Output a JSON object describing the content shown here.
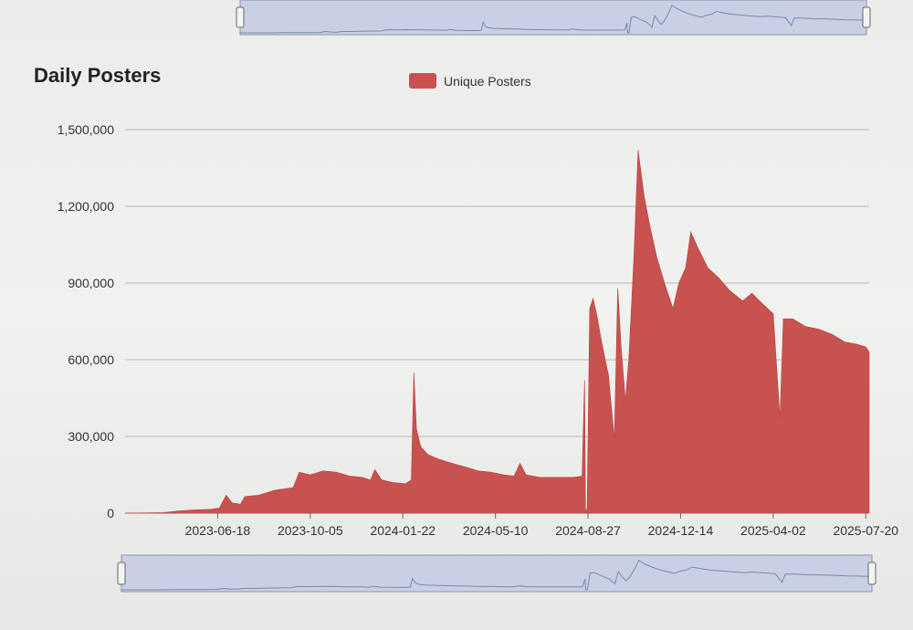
{
  "chart_data": {
    "type": "area",
    "title": "Daily Posters",
    "series": [
      {
        "name": "Unique Posters",
        "color": "#c85250",
        "points": [
          [
            "2023-03-01",
            0
          ],
          [
            "2023-04-15",
            2000
          ],
          [
            "2023-05-01",
            8000
          ],
          [
            "2023-05-20",
            12000
          ],
          [
            "2023-06-10",
            15000
          ],
          [
            "2023-06-20",
            20000
          ],
          [
            "2023-06-28",
            70000
          ],
          [
            "2023-07-05",
            40000
          ],
          [
            "2023-07-15",
            35000
          ],
          [
            "2023-07-20",
            65000
          ],
          [
            "2023-08-05",
            70000
          ],
          [
            "2023-08-25",
            90000
          ],
          [
            "2023-09-15",
            100000
          ],
          [
            "2023-09-22",
            160000
          ],
          [
            "2023-10-05",
            150000
          ],
          [
            "2023-10-20",
            165000
          ],
          [
            "2023-11-05",
            160000
          ],
          [
            "2023-11-20",
            145000
          ],
          [
            "2023-12-05",
            140000
          ],
          [
            "2023-12-15",
            130000
          ],
          [
            "2023-12-20",
            170000
          ],
          [
            "2023-12-28",
            130000
          ],
          [
            "2024-01-10",
            120000
          ],
          [
            "2024-01-25",
            115000
          ],
          [
            "2024-02-01",
            130000
          ],
          [
            "2024-02-04",
            550000
          ],
          [
            "2024-02-07",
            330000
          ],
          [
            "2024-02-12",
            260000
          ],
          [
            "2024-02-20",
            230000
          ],
          [
            "2024-03-05",
            210000
          ],
          [
            "2024-03-25",
            190000
          ],
          [
            "2024-04-05",
            180000
          ],
          [
            "2024-04-20",
            165000
          ],
          [
            "2024-05-05",
            160000
          ],
          [
            "2024-05-20",
            150000
          ],
          [
            "2024-06-01",
            145000
          ],
          [
            "2024-06-08",
            195000
          ],
          [
            "2024-06-15",
            150000
          ],
          [
            "2024-07-01",
            140000
          ],
          [
            "2024-07-20",
            140000
          ],
          [
            "2024-08-10",
            140000
          ],
          [
            "2024-08-20",
            145000
          ],
          [
            "2024-08-23",
            520000
          ],
          [
            "2024-08-24",
            0
          ],
          [
            "2024-08-26",
            20000
          ],
          [
            "2024-08-29",
            800000
          ],
          [
            "2024-09-02",
            840000
          ],
          [
            "2024-09-06",
            780000
          ],
          [
            "2024-09-12",
            670000
          ],
          [
            "2024-09-20",
            540000
          ],
          [
            "2024-09-27",
            290000
          ],
          [
            "2024-10-01",
            880000
          ],
          [
            "2024-10-05",
            650000
          ],
          [
            "2024-10-10",
            440000
          ],
          [
            "2024-10-14",
            600000
          ],
          [
            "2024-10-20",
            1000000
          ],
          [
            "2024-10-25",
            1420000
          ],
          [
            "2024-11-01",
            1240000
          ],
          [
            "2024-11-08",
            1120000
          ],
          [
            "2024-11-16",
            1000000
          ],
          [
            "2024-11-25",
            900000
          ],
          [
            "2024-12-05",
            800000
          ],
          [
            "2024-12-12",
            900000
          ],
          [
            "2024-12-20",
            960000
          ],
          [
            "2024-12-26",
            1100000
          ],
          [
            "2025-01-03",
            1040000
          ],
          [
            "2025-01-15",
            960000
          ],
          [
            "2025-01-28",
            920000
          ],
          [
            "2025-02-10",
            870000
          ],
          [
            "2025-02-25",
            830000
          ],
          [
            "2025-03-08",
            860000
          ],
          [
            "2025-03-20",
            820000
          ],
          [
            "2025-04-02",
            780000
          ],
          [
            "2025-04-10",
            370000
          ],
          [
            "2025-04-14",
            760000
          ],
          [
            "2025-04-25",
            760000
          ],
          [
            "2025-05-10",
            730000
          ],
          [
            "2025-05-25",
            720000
          ],
          [
            "2025-06-10",
            700000
          ],
          [
            "2025-06-25",
            670000
          ],
          [
            "2025-07-10",
            660000
          ],
          [
            "2025-07-20",
            650000
          ],
          [
            "2025-07-24",
            630000
          ]
        ]
      }
    ],
    "x_axis": {
      "type": "date",
      "range": [
        "2023-03-01",
        "2025-07-24"
      ],
      "ticks": [
        "2023-06-18",
        "2023-10-05",
        "2024-01-22",
        "2024-05-10",
        "2024-08-27",
        "2024-12-14",
        "2025-04-02",
        "2025-07-20"
      ]
    },
    "y_axis": {
      "range": [
        0,
        1500000
      ],
      "ticks": [
        0,
        300000,
        600000,
        900000,
        1200000,
        1500000
      ],
      "tick_labels": [
        "0",
        "300,000",
        "600,000",
        "900,000",
        "1,200,000",
        "1,500,000"
      ]
    },
    "grid": true,
    "legend_position": "top-center",
    "range_selector": true
  }
}
